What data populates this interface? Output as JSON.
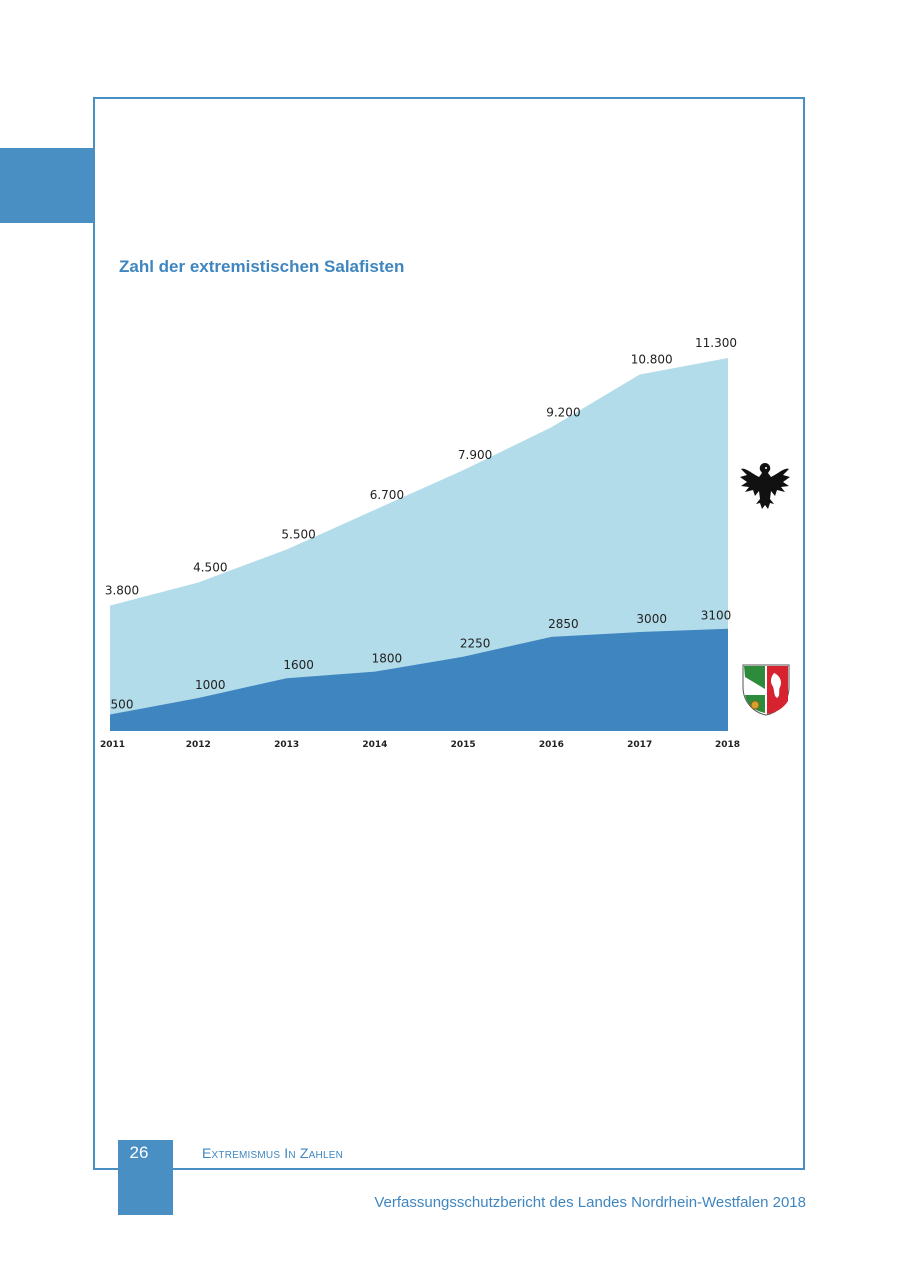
{
  "chart_data": {
    "type": "area",
    "title": "Zahl der extremistischen Salafisten",
    "x": [
      "2011",
      "2012",
      "2013",
      "2014",
      "2015",
      "2016",
      "2017",
      "2018"
    ],
    "series": [
      {
        "values": [
          3800,
          4500,
          5500,
          6700,
          7900,
          9200,
          10800,
          11300
        ],
        "labels": [
          "3.800",
          "4.500",
          "5.500",
          "6.700",
          "7.900",
          "9.200",
          "10.800",
          "11.300"
        ],
        "color": "#b3dcea",
        "icon": "federal-eagle-icon"
      },
      {
        "values": [
          500,
          1000,
          1600,
          1800,
          2250,
          2850,
          3000,
          3100
        ],
        "labels": [
          "500",
          "1000",
          "1600",
          "1800",
          "2250",
          "2850",
          "3000",
          "3100"
        ],
        "color": "#3f86c0",
        "icon": "nrw-coat-of-arms-icon"
      }
    ],
    "ylim": [
      0,
      11300
    ],
    "grid": false,
    "legend": "right (icons)"
  },
  "page": {
    "number": "26",
    "section": "Extremismus In Zahlen",
    "footer": "Verfassungsschutzbericht des Landes Nordrhein-Westfalen 2018"
  }
}
